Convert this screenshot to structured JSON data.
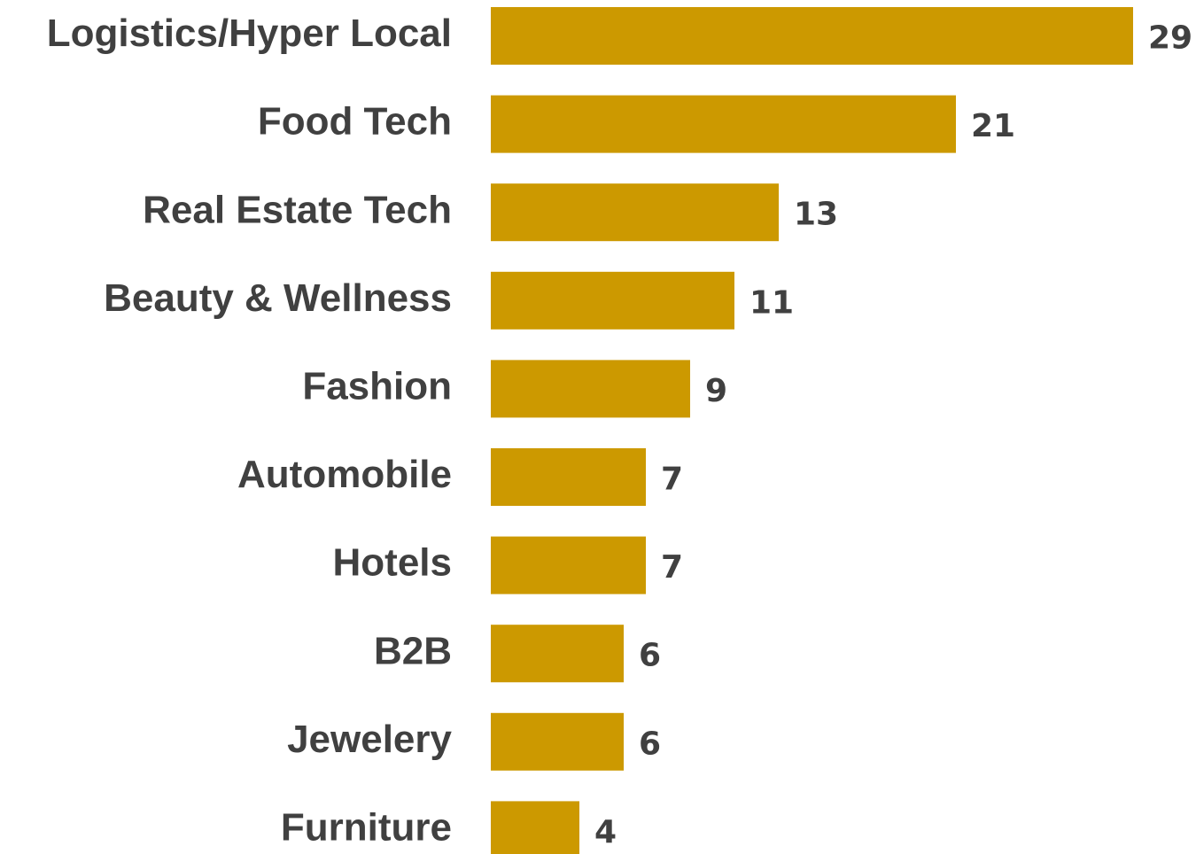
{
  "chart_data": {
    "type": "bar",
    "orientation": "horizontal",
    "categories": [
      "Logistics/Hyper Local",
      "Food Tech",
      "Real Estate Tech",
      "Beauty & Wellness",
      "Fashion",
      "Automobile",
      "Hotels",
      "B2B",
      "Jewelery",
      "Furniture"
    ],
    "values": [
      29,
      21,
      13,
      11,
      9,
      7,
      7,
      6,
      6,
      4
    ],
    "color": "#cc9900"
  }
}
